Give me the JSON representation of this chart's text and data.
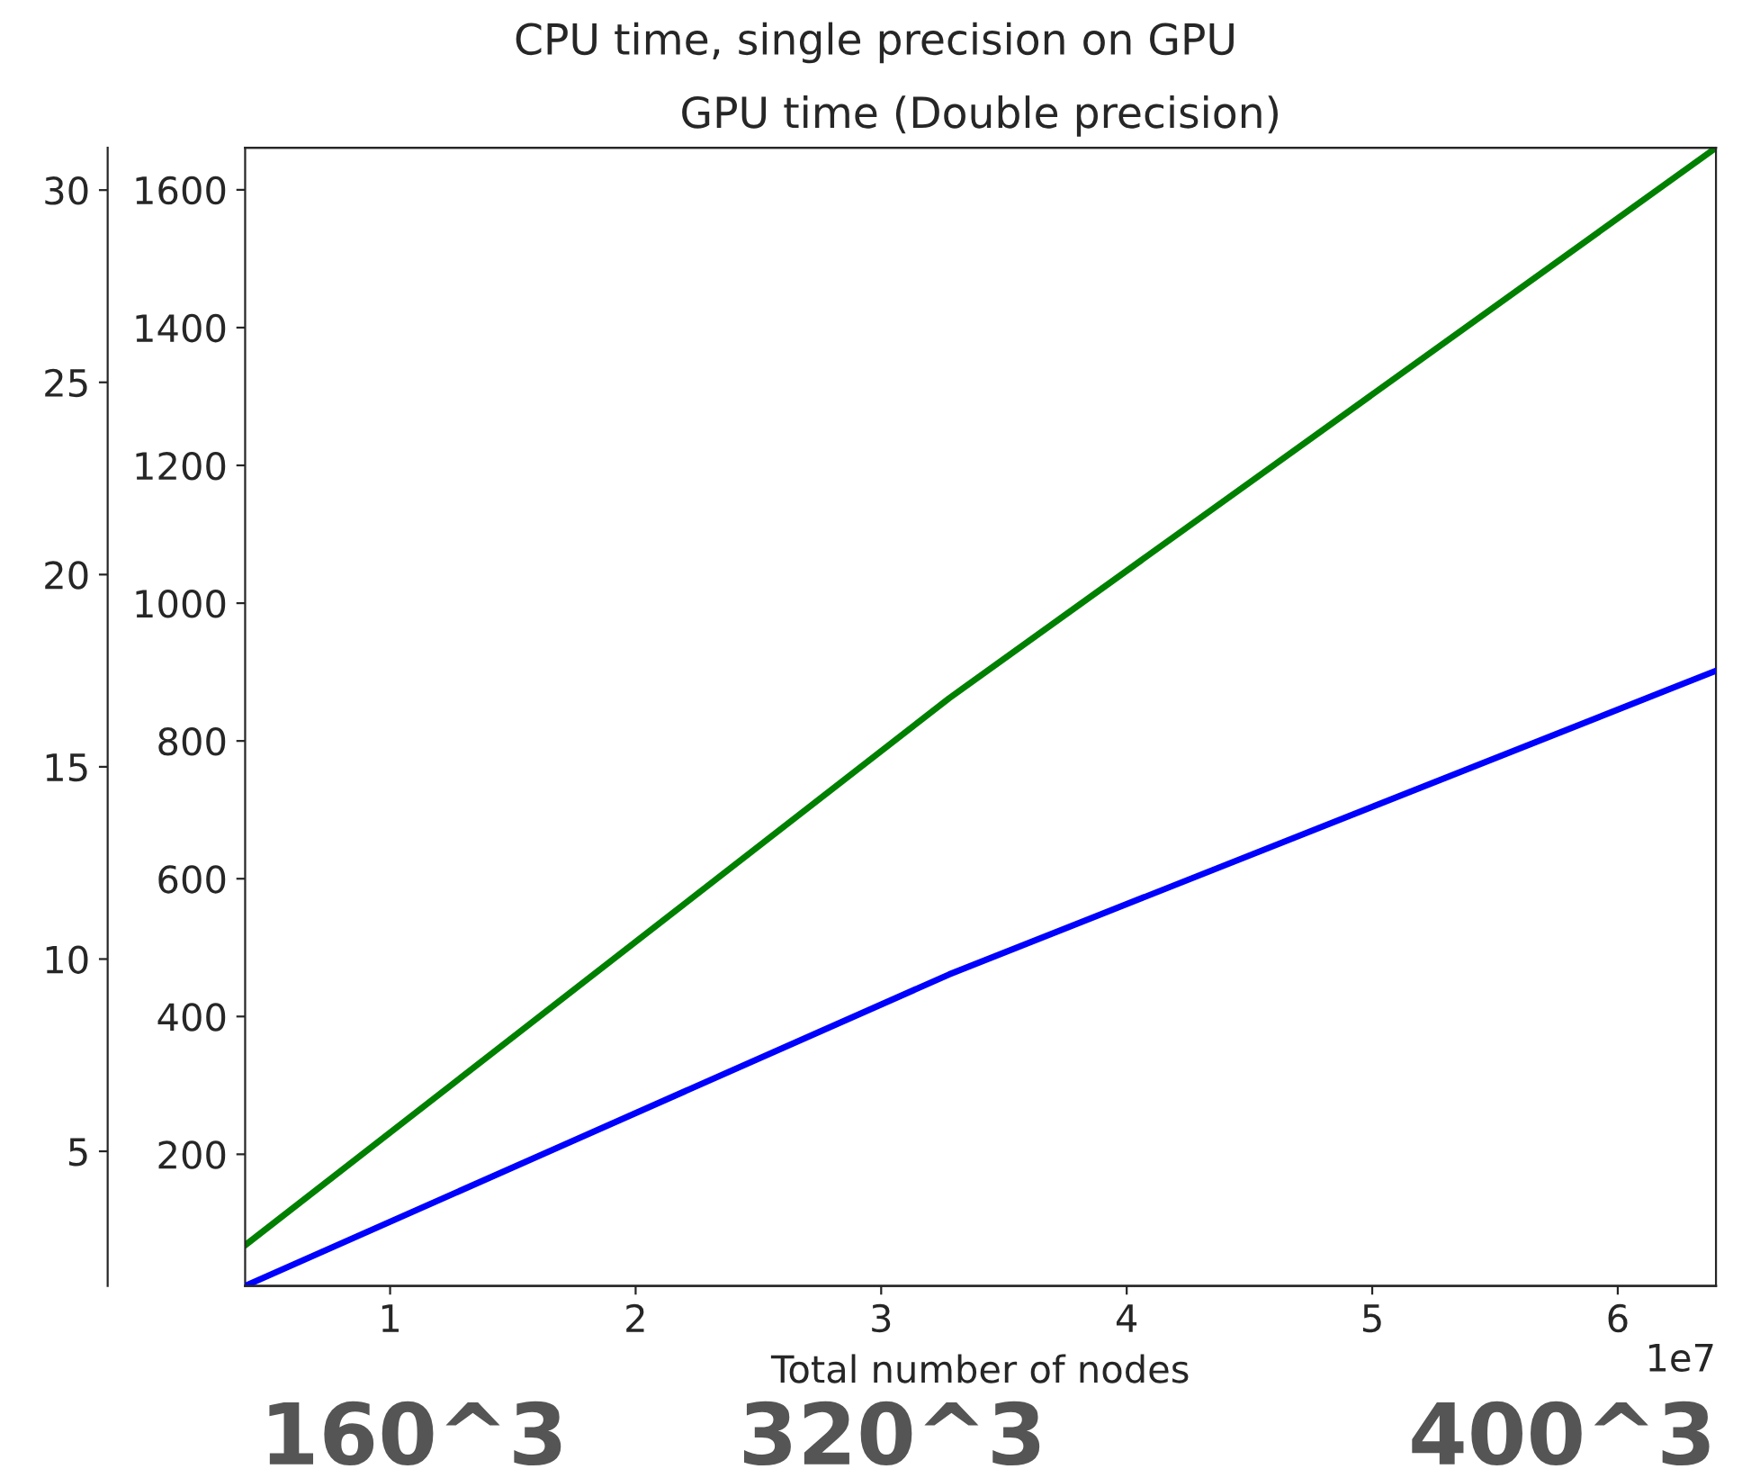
{
  "chart_data": {
    "type": "line",
    "title": "CPU time, single precision on GPU",
    "subtitle": "GPU time (Double precision)",
    "xlabel": "Total number of nodes",
    "x": [
      0.4096,
      3.2768,
      6.4
    ],
    "series": [
      {
        "color": "#008000",
        "values": [
          68,
          862,
          1661
        ]
      },
      {
        "color": "#0000ff",
        "values": [
          1.5,
          9.6,
          17.5
        ],
        "axis": "y2"
      }
    ],
    "xlim": [
      0.4096,
      6.4
    ],
    "xticks": [
      1,
      2,
      3,
      4,
      5,
      6
    ],
    "ylim": [
      9,
      1661
    ],
    "yticks": [
      200,
      400,
      600,
      800,
      1000,
      1200,
      1400,
      1600
    ],
    "y2lim": [
      1.5,
      31.1
    ],
    "y2ticks": [
      5,
      10,
      15,
      20,
      25,
      30
    ],
    "grid": false,
    "legend": false,
    "annotations": [
      "1e7",
      "160^3",
      "320^3",
      "400^3"
    ]
  }
}
